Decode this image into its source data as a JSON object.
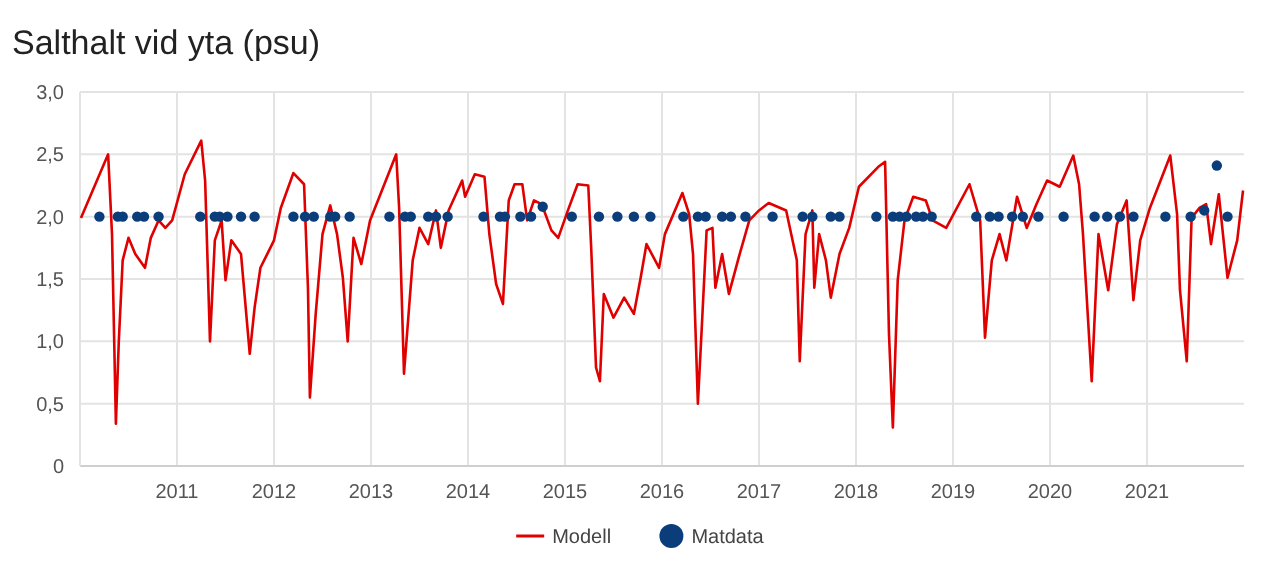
{
  "chart_data": {
    "type": "line",
    "title": "Salthalt vid yta (psu)",
    "xlim": [
      2010,
      2022
    ],
    "xticks": [
      2011,
      2012,
      2013,
      2014,
      2015,
      2016,
      2017,
      2018,
      2019,
      2020,
      2021
    ],
    "ylim": [
      0,
      3
    ],
    "yticks": [
      {
        "value": 0,
        "label": "0"
      },
      {
        "value": 0.5,
        "label": "0,5"
      },
      {
        "value": 1,
        "label": "1,0"
      },
      {
        "value": 1.5,
        "label": "1,5"
      },
      {
        "value": 2,
        "label": "2,0"
      },
      {
        "value": 2.5,
        "label": "2,5"
      },
      {
        "value": 3,
        "label": "3,0"
      }
    ],
    "grid": true,
    "legend": "bottom",
    "series": [
      {
        "name": "Modell",
        "color": "#e00000",
        "marker": "none",
        "x": [
          2010.01,
          2010.29,
          2010.33,
          2010.37,
          2010.4,
          2010.44,
          2010.5,
          2010.57,
          2010.67,
          2010.73,
          2010.81,
          2010.88,
          2010.95,
          2011.08,
          2011.25,
          2011.29,
          2011.34,
          2011.39,
          2011.46,
          2011.5,
          2011.56,
          2011.66,
          2011.75,
          2011.8,
          2011.86,
          2011.93,
          2012.0,
          2012.07,
          2012.2,
          2012.31,
          2012.35,
          2012.37,
          2012.43,
          2012.5,
          2012.58,
          2012.65,
          2012.71,
          2012.76,
          2012.82,
          2012.9,
          2012.99,
          2013.26,
          2013.29,
          2013.34,
          2013.43,
          2013.5,
          2013.59,
          2013.67,
          2013.72,
          2013.8,
          2013.94,
          2013.97,
          2014.07,
          2014.17,
          2014.22,
          2014.29,
          2014.36,
          2014.42,
          2014.48,
          2014.56,
          2014.61,
          2014.68,
          2014.76,
          2014.86,
          2014.93,
          2015.03,
          2015.13,
          2015.24,
          2015.27,
          2015.32,
          2015.36,
          2015.4,
          2015.5,
          2015.61,
          2015.71,
          2015.78,
          2015.84,
          2015.97,
          2016.03,
          2016.21,
          2016.28,
          2016.32,
          2016.37,
          2016.41,
          2016.46,
          2016.52,
          2016.55,
          2016.62,
          2016.69,
          2016.79,
          2016.9,
          2017.0,
          2017.1,
          2017.28,
          2017.39,
          2017.42,
          2017.48,
          2017.55,
          2017.57,
          2017.62,
          2017.69,
          2017.74,
          2017.83,
          2017.93,
          2018.03,
          2018.23,
          2018.3,
          2018.34,
          2018.38,
          2018.43,
          2018.5,
          2018.59,
          2018.72,
          2018.79,
          2018.93,
          2019.17,
          2019.28,
          2019.33,
          2019.4,
          2019.48,
          2019.55,
          2019.66,
          2019.76,
          2019.86,
          2019.97,
          2020.1,
          2020.24,
          2020.3,
          2020.34,
          2020.43,
          2020.5,
          2020.6,
          2020.69,
          2020.79,
          2020.86,
          2020.93,
          2021.03,
          2021.24,
          2021.31,
          2021.34,
          2021.41,
          2021.46,
          2021.54,
          2021.61,
          2021.66,
          2021.74,
          2021.83,
          2021.93,
          2021.99
        ],
        "values": [
          1.99,
          2.5,
          1.86,
          0.34,
          1.0,
          1.65,
          1.83,
          1.7,
          1.59,
          1.83,
          1.97,
          1.91,
          1.97,
          2.34,
          2.61,
          2.29,
          1.0,
          1.81,
          1.97,
          1.49,
          1.81,
          1.7,
          0.9,
          1.27,
          1.59,
          1.7,
          1.81,
          2.07,
          2.35,
          2.26,
          1.43,
          0.55,
          1.22,
          1.86,
          2.09,
          1.86,
          1.51,
          1.0,
          1.83,
          1.62,
          1.97,
          2.5,
          2.07,
          0.74,
          1.65,
          1.91,
          1.78,
          2.05,
          1.75,
          2.05,
          2.29,
          2.16,
          2.34,
          2.32,
          1.86,
          1.46,
          1.3,
          2.13,
          2.26,
          2.26,
          1.97,
          2.13,
          2.1,
          1.89,
          1.83,
          2.05,
          2.26,
          2.25,
          1.75,
          0.79,
          0.68,
          1.38,
          1.19,
          1.35,
          1.22,
          1.51,
          1.78,
          1.59,
          1.86,
          2.19,
          2.02,
          1.7,
          0.5,
          1.11,
          1.89,
          1.91,
          1.43,
          1.7,
          1.38,
          1.67,
          1.97,
          2.05,
          2.11,
          2.05,
          1.65,
          0.84,
          1.86,
          2.05,
          1.43,
          1.86,
          1.65,
          1.35,
          1.7,
          1.91,
          2.24,
          2.4,
          2.44,
          1.06,
          0.31,
          1.49,
          1.97,
          2.16,
          2.13,
          1.97,
          1.91,
          2.26,
          1.97,
          1.03,
          1.65,
          1.86,
          1.65,
          2.16,
          1.91,
          2.1,
          2.29,
          2.24,
          2.49,
          2.26,
          1.86,
          0.68,
          1.86,
          1.41,
          1.94,
          2.13,
          1.33,
          1.81,
          2.07,
          2.49,
          2.02,
          1.41,
          0.84,
          1.99,
          2.07,
          2.1,
          1.78,
          2.18,
          1.51,
          1.81,
          2.21
        ]
      },
      {
        "name": "Matdata",
        "type": "scatter",
        "color": "#0b3d7a",
        "marker": "circle",
        "x": [
          2010.2,
          2010.39,
          2010.44,
          2010.59,
          2010.66,
          2010.81,
          2011.24,
          2011.39,
          2011.44,
          2011.52,
          2011.66,
          2011.8,
          2012.2,
          2012.32,
          2012.41,
          2012.58,
          2012.63,
          2012.78,
          2013.19,
          2013.35,
          2013.41,
          2013.59,
          2013.67,
          2013.79,
          2014.16,
          2014.33,
          2014.38,
          2014.54,
          2014.65,
          2014.77,
          2015.07,
          2015.35,
          2015.54,
          2015.71,
          2015.88,
          2016.22,
          2016.37,
          2016.45,
          2016.62,
          2016.71,
          2016.86,
          2017.14,
          2017.45,
          2017.55,
          2017.74,
          2017.83,
          2018.21,
          2018.38,
          2018.45,
          2018.52,
          2018.62,
          2018.69,
          2018.78,
          2019.24,
          2019.38,
          2019.47,
          2019.61,
          2019.72,
          2019.88,
          2020.14,
          2020.46,
          2020.59,
          2020.72,
          2020.86,
          2021.19,
          2021.45,
          2021.59,
          2021.72,
          2021.83
        ],
        "values": [
          2,
          2,
          2,
          2,
          2,
          2,
          2,
          2,
          2,
          2,
          2,
          2,
          2,
          2,
          2,
          2,
          2,
          2,
          2,
          2,
          2,
          2,
          2,
          2,
          2,
          2,
          2,
          2,
          2,
          2.08,
          2,
          2,
          2,
          2,
          2,
          2,
          2,
          2,
          2,
          2,
          2,
          2,
          2,
          2,
          2,
          2,
          2,
          2,
          2,
          2,
          2,
          2,
          2,
          2,
          2,
          2,
          2,
          2,
          2,
          2,
          2,
          2,
          2,
          2,
          2,
          2,
          2.05,
          2.41,
          2
        ]
      }
    ]
  }
}
